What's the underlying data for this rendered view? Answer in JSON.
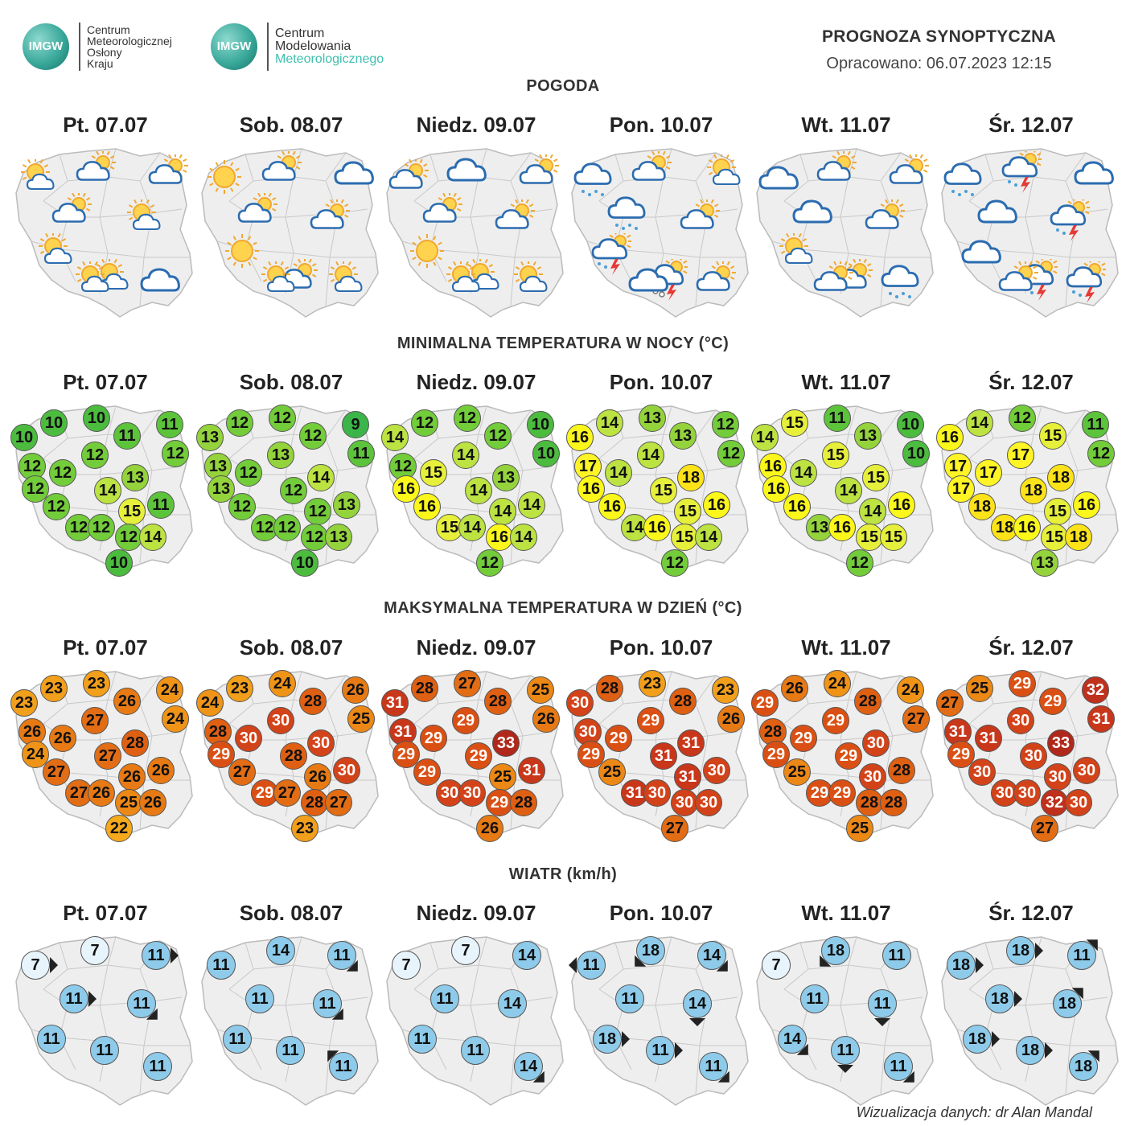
{
  "logos": {
    "left": {
      "badge": "IMGW",
      "lines": [
        "Centrum",
        "Meteorologicznej",
        "Osłony",
        "Kraju"
      ]
    },
    "right": {
      "badge": "IMGW",
      "lines": [
        "Centrum",
        "Modelowania",
        "Meteorologicznego"
      ]
    }
  },
  "header": {
    "title": "PROGNOZA SYNOPTYCZNA",
    "subtitle": "Opracowano: 06.07.2023 12:15"
  },
  "days": [
    "Pt. 07.07",
    "Sob. 08.07",
    "Niedz. 09.07",
    "Pon. 10.07",
    "Wt. 11.07",
    "Śr. 12.07"
  ],
  "sections": {
    "weather": "POGODA",
    "tmin": "MINIMALNA TEMPERATURA W NOCY (°C)",
    "tmax": "MAKSYMALNA TEMPERATURA W DZIEŃ (°C)",
    "wind": "WIATR (km/h)"
  },
  "weather": [
    [
      "sun-cloud",
      "cloud-sun",
      "cloud-sun",
      "cloud-sun",
      "sun-cloud",
      "sun-cloud",
      "sun-cloud",
      "cloud",
      "sun-cloud"
    ],
    [
      "sun",
      "cloud-sun",
      "cloud",
      "cloud-sun",
      "cloud-sun",
      "sun",
      "cloud-sun",
      "sun-cloud",
      "sun-cloud"
    ],
    [
      "cloud-sun",
      "cloud",
      "cloud-sun",
      "cloud-sun",
      "cloud-sun",
      "sun",
      "sun-cloud",
      "sun-cloud",
      "sun-cloud"
    ],
    [
      "cloud-rain",
      "cloud-sun",
      "sun-cloud",
      "cloud-rain",
      "cloud-sun",
      "storm",
      "hail-storm",
      "cloud-sun",
      "cloud"
    ],
    [
      "cloud",
      "cloud-sun",
      "cloud-sun",
      "cloud",
      "cloud-sun",
      "sun-cloud",
      "cloud-sun",
      "cloud-rain",
      "cloud-sun"
    ],
    [
      "cloud-rain",
      "storm",
      "cloud",
      "cloud",
      "storm",
      "cloud",
      "storm",
      "storm",
      "cloud-sun"
    ]
  ],
  "tmin": [
    [
      10,
      10,
      11,
      10,
      11,
      12,
      12,
      12,
      12,
      13,
      12,
      14,
      11,
      12,
      15,
      12,
      12,
      12,
      14,
      10
    ],
    [
      12,
      12,
      9,
      13,
      12,
      11,
      13,
      13,
      12,
      14,
      13,
      12,
      13,
      12,
      12,
      12,
      12,
      12,
      13,
      10
    ],
    [
      12,
      12,
      10,
      14,
      12,
      10,
      14,
      12,
      15,
      13,
      16,
      14,
      14,
      16,
      14,
      15,
      14,
      16,
      14,
      12
    ],
    [
      14,
      13,
      12,
      16,
      13,
      12,
      14,
      17,
      14,
      18,
      16,
      15,
      16,
      16,
      15,
      14,
      16,
      15,
      14,
      12
    ],
    [
      15,
      11,
      10,
      14,
      13,
      10,
      15,
      16,
      14,
      15,
      16,
      14,
      16,
      16,
      14,
      13,
      16,
      15,
      15,
      12
    ],
    [
      14,
      12,
      11,
      16,
      15,
      12,
      17,
      17,
      17,
      18,
      17,
      18,
      16,
      18,
      15,
      18,
      16,
      15,
      18,
      13
    ]
  ],
  "tmax": [
    [
      23,
      23,
      24,
      23,
      26,
      24,
      27,
      26,
      26,
      28,
      24,
      27,
      26,
      27,
      26,
      27,
      26,
      25,
      26,
      22
    ],
    [
      23,
      24,
      26,
      24,
      28,
      25,
      30,
      28,
      30,
      30,
      29,
      28,
      30,
      27,
      26,
      29,
      27,
      28,
      27,
      23
    ],
    [
      28,
      27,
      25,
      31,
      28,
      26,
      29,
      31,
      29,
      33,
      29,
      29,
      31,
      29,
      25,
      30,
      30,
      29,
      28,
      26
    ],
    [
      28,
      23,
      23,
      30,
      28,
      26,
      29,
      30,
      29,
      31,
      29,
      31,
      30,
      25,
      31,
      31,
      30,
      30,
      30,
      27
    ],
    [
      26,
      24,
      24,
      29,
      28,
      27,
      29,
      28,
      29,
      30,
      29,
      29,
      28,
      25,
      30,
      29,
      29,
      28,
      28,
      25
    ],
    [
      25,
      29,
      32,
      27,
      29,
      31,
      30,
      31,
      31,
      33,
      29,
      30,
      30,
      30,
      30,
      30,
      30,
      32,
      30,
      27
    ]
  ],
  "wind": [
    [
      {
        "v": 7,
        "d": "E"
      },
      {
        "v": 7,
        "d": ""
      },
      {
        "v": 11,
        "d": "E"
      },
      {
        "v": 11,
        "d": "E"
      },
      {
        "v": 11,
        "d": "SE"
      },
      {
        "v": 11,
        "d": ""
      },
      {
        "v": 11,
        "d": ""
      },
      {
        "v": 11,
        "d": ""
      }
    ],
    [
      {
        "v": 11,
        "d": ""
      },
      {
        "v": 14,
        "d": ""
      },
      {
        "v": 11,
        "d": "SE"
      },
      {
        "v": 11,
        "d": ""
      },
      {
        "v": 11,
        "d": "SE"
      },
      {
        "v": 11,
        "d": ""
      },
      {
        "v": 11,
        "d": ""
      },
      {
        "v": 11,
        "d": "NW"
      }
    ],
    [
      {
        "v": 7,
        "d": ""
      },
      {
        "v": 7,
        "d": ""
      },
      {
        "v": 14,
        "d": ""
      },
      {
        "v": 11,
        "d": ""
      },
      {
        "v": 14,
        "d": ""
      },
      {
        "v": 11,
        "d": ""
      },
      {
        "v": 11,
        "d": ""
      },
      {
        "v": 14,
        "d": "SE"
      }
    ],
    [
      {
        "v": 11,
        "d": "W"
      },
      {
        "v": 18,
        "d": "SW"
      },
      {
        "v": 14,
        "d": "SE"
      },
      {
        "v": 11,
        "d": ""
      },
      {
        "v": 14,
        "d": "S"
      },
      {
        "v": 18,
        "d": "E"
      },
      {
        "v": 11,
        "d": "E"
      },
      {
        "v": 11,
        "d": "SE"
      }
    ],
    [
      {
        "v": 7,
        "d": ""
      },
      {
        "v": 18,
        "d": "SW"
      },
      {
        "v": 11,
        "d": ""
      },
      {
        "v": 11,
        "d": ""
      },
      {
        "v": 11,
        "d": "S"
      },
      {
        "v": 14,
        "d": "SE"
      },
      {
        "v": 11,
        "d": "S"
      },
      {
        "v": 11,
        "d": "SE"
      }
    ],
    [
      {
        "v": 18,
        "d": "E"
      },
      {
        "v": 18,
        "d": "E"
      },
      {
        "v": 11,
        "d": "NE"
      },
      {
        "v": 18,
        "d": "E"
      },
      {
        "v": 18,
        "d": "NE"
      },
      {
        "v": 18,
        "d": "E"
      },
      {
        "v": 18,
        "d": "E"
      },
      {
        "v": 18,
        "d": "NE"
      }
    ]
  ],
  "footer": "Wizualizacja danych: dr Alan Mandal",
  "colors": {
    "map_fill": "#eeeeee",
    "map_stroke": "#bbbbbb",
    "wind_circle": "#8ecbea",
    "wind_light": "#e8f4fb"
  }
}
